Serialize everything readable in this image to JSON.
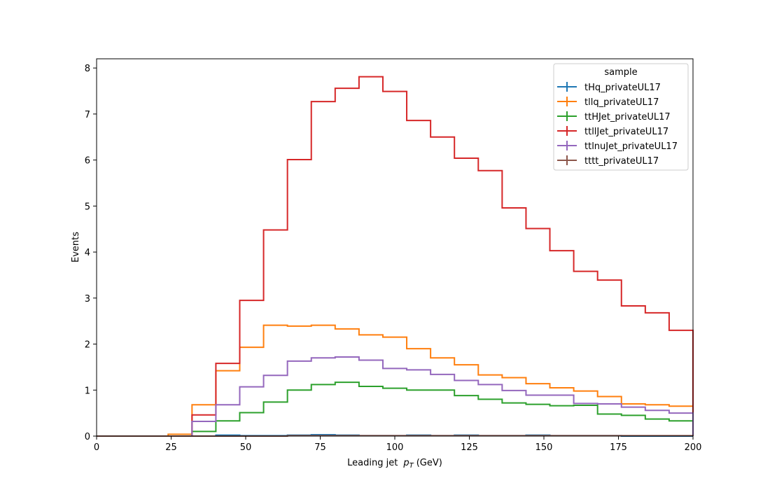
{
  "chart_data": {
    "type": "line",
    "drawstyle": "step-histogram",
    "xlabel_prefix": "Leading jet",
    "xlabel_symbol": "p",
    "xlabel_subscript": "T",
    "xlabel_suffix": "(GeV)",
    "ylabel": "Events",
    "xlim": [
      0,
      200
    ],
    "ylim": [
      0,
      8.2
    ],
    "x_ticks": [
      0,
      25,
      50,
      75,
      100,
      125,
      150,
      175,
      200
    ],
    "y_ticks": [
      0,
      1,
      2,
      3,
      4,
      5,
      6,
      7,
      8
    ],
    "grid": false,
    "legend_title": "sample",
    "legend_position": "top-right",
    "bin_edges": [
      0,
      8,
      16,
      24,
      32,
      40,
      48,
      56,
      64,
      72,
      80,
      88,
      96,
      104,
      112,
      120,
      128,
      136,
      144,
      152,
      160,
      168,
      176,
      184,
      192,
      200
    ],
    "series": [
      {
        "name": "tHq_privateUL17",
        "color": "#1f77b4",
        "values": [
          0,
          0,
          0,
          0,
          0,
          0.02,
          0.01,
          0.01,
          0.02,
          0.03,
          0.02,
          0.01,
          0.01,
          0.02,
          0.01,
          0.02,
          0.01,
          0.01,
          0.02,
          0.01,
          0.01,
          0.01,
          0,
          0,
          0
        ]
      },
      {
        "name": "tllq_privateUL17",
        "color": "#ff7f0e",
        "values": [
          0,
          0,
          0,
          0.04,
          0.68,
          1.42,
          1.93,
          2.41,
          2.39,
          2.41,
          2.33,
          2.2,
          2.15,
          1.9,
          1.7,
          1.55,
          1.33,
          1.27,
          1.14,
          1.05,
          0.98,
          0.86,
          0.7,
          0.68,
          0.65
        ]
      },
      {
        "name": "ttHJet_privateUL17",
        "color": "#2ca02c",
        "values": [
          0,
          0,
          0,
          0,
          0.1,
          0.33,
          0.51,
          0.74,
          1.0,
          1.12,
          1.17,
          1.08,
          1.04,
          1.0,
          1.0,
          0.88,
          0.8,
          0.72,
          0.69,
          0.66,
          0.67,
          0.48,
          0.45,
          0.37,
          0.33
        ]
      },
      {
        "name": "ttllJet_privateUL17",
        "color": "#d62728",
        "values": [
          0,
          0,
          0,
          0,
          0.46,
          1.58,
          2.95,
          4.48,
          6.01,
          7.27,
          7.56,
          7.81,
          7.49,
          6.86,
          6.5,
          6.04,
          5.77,
          4.96,
          4.51,
          4.03,
          3.58,
          3.39,
          2.83,
          2.68,
          2.3
        ]
      },
      {
        "name": "ttlnuJet_privateUL17",
        "color": "#9467bd",
        "values": [
          0,
          0,
          0,
          0,
          0.32,
          0.68,
          1.07,
          1.32,
          1.63,
          1.7,
          1.72,
          1.65,
          1.47,
          1.44,
          1.34,
          1.21,
          1.12,
          0.99,
          0.89,
          0.89,
          0.71,
          0.7,
          0.63,
          0.56,
          0.5
        ]
      },
      {
        "name": "tttt_privateUL17",
        "color": "#8c564b",
        "values": [
          0,
          0,
          0,
          0,
          0,
          0,
          0,
          0,
          0.01,
          0.01,
          0.01,
          0.01,
          0.01,
          0.01,
          0.01,
          0.01,
          0.01,
          0.01,
          0.01,
          0.01,
          0.01,
          0.01,
          0.01,
          0.01,
          0.01
        ]
      }
    ]
  }
}
